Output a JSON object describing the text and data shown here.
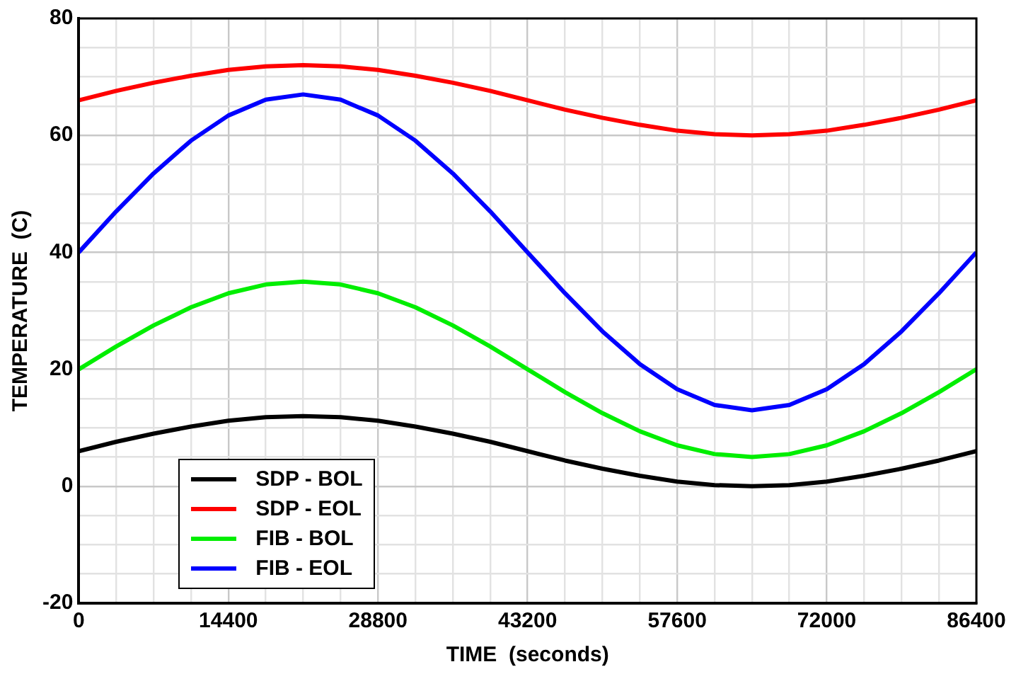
{
  "chart_data": {
    "type": "line",
    "xlabel": "TIME  (seconds)",
    "ylabel": "TEMPERATURE  (C)",
    "x": [
      0,
      3600,
      7200,
      10800,
      14400,
      18000,
      21600,
      25200,
      28800,
      32400,
      36000,
      39600,
      43200,
      46800,
      50400,
      54000,
      57600,
      61200,
      64800,
      68400,
      72000,
      75600,
      79200,
      82800,
      86400
    ],
    "series": [
      {
        "name": "SDP - BOL",
        "color": "#000000",
        "values": [
          6,
          7.6,
          9,
          10.2,
          11.2,
          11.8,
          12,
          11.8,
          11.2,
          10.2,
          9,
          7.6,
          6,
          4.4,
          3,
          1.8,
          0.8,
          0.2,
          0,
          0.2,
          0.8,
          1.8,
          3,
          4.4,
          6
        ]
      },
      {
        "name": "SDP - EOL",
        "color": "#ff0000",
        "values": [
          66,
          67.6,
          69,
          70.2,
          71.2,
          71.8,
          72,
          71.8,
          71.2,
          70.2,
          69,
          67.6,
          66,
          64.4,
          63,
          61.8,
          60.8,
          60.2,
          60,
          60.2,
          60.8,
          61.8,
          63,
          64.4,
          66
        ]
      },
      {
        "name": "FIB - BOL",
        "color": "#00ee00",
        "values": [
          20,
          23.9,
          27.5,
          30.6,
          33,
          34.5,
          35,
          34.5,
          33,
          30.6,
          27.5,
          23.9,
          20,
          16.1,
          12.5,
          9.4,
          7,
          5.5,
          5,
          5.5,
          7,
          9.4,
          12.5,
          16.1,
          20
        ]
      },
      {
        "name": "FIB - EOL",
        "color": "#0000ff",
        "values": [
          40,
          47,
          53.5,
          59.1,
          63.4,
          66.1,
          67,
          66.1,
          63.4,
          59.1,
          53.5,
          47,
          40,
          33,
          26.5,
          20.9,
          16.6,
          13.9,
          13,
          13.9,
          16.6,
          20.9,
          26.5,
          33,
          40
        ]
      }
    ],
    "xlim": [
      0,
      86400
    ],
    "xticks": [
      0,
      {
        "value": 3600,
        "label": null
      },
      {
        "value": 7200,
        "label": null
      },
      {
        "value": 10800,
        "label": null
      },
      14400,
      {
        "value": 18000,
        "label": null
      },
      {
        "value": 21600,
        "label": null
      },
      {
        "value": 25200,
        "label": null
      },
      28800,
      {
        "value": 32400,
        "label": null
      },
      {
        "value": 36000,
        "label": null
      },
      {
        "value": 39600,
        "label": null
      },
      43200,
      {
        "value": 46800,
        "label": null
      },
      {
        "value": 50400,
        "label": null
      },
      {
        "value": 54000,
        "label": null
      },
      57600,
      {
        "value": 61200,
        "label": null
      },
      {
        "value": 64800,
        "label": null
      },
      {
        "value": 68400,
        "label": null
      },
      72000,
      {
        "value": 75600,
        "label": null
      },
      {
        "value": 79200,
        "label": null
      },
      {
        "value": 82800,
        "label": null
      },
      86400
    ],
    "ylim": [
      -20,
      80
    ],
    "yticks": [
      -20,
      {
        "value": -15,
        "label": null
      },
      {
        "value": -10,
        "label": null
      },
      {
        "value": -5,
        "label": null
      },
      0,
      {
        "value": 5,
        "label": null
      },
      {
        "value": 10,
        "label": null
      },
      {
        "value": 15,
        "label": null
      },
      20,
      {
        "value": 25,
        "label": null
      },
      {
        "value": 30,
        "label": null
      },
      {
        "value": 35,
        "label": null
      },
      40,
      {
        "value": 45,
        "label": null
      },
      {
        "value": 50,
        "label": null
      },
      {
        "value": 55,
        "label": null
      },
      60,
      {
        "value": 65,
        "label": null
      },
      {
        "value": 70,
        "label": null
      },
      {
        "value": 75,
        "label": null
      },
      80
    ],
    "grid": true,
    "legend": "bottom left",
    "marker": "none",
    "line_style": "solid"
  }
}
